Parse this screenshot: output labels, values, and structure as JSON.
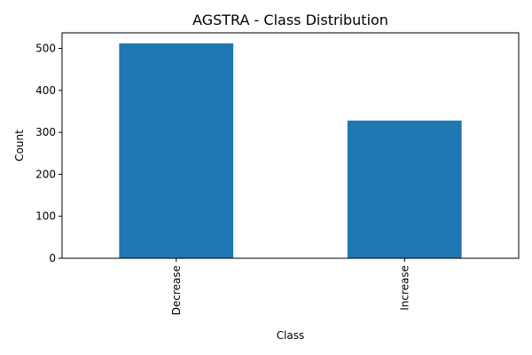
{
  "chart_data": {
    "type": "bar",
    "title": "AGSTRA - Class Distribution",
    "xlabel": "Class",
    "ylabel": "Count",
    "categories": [
      "Decrease",
      "Increase"
    ],
    "values": [
      512,
      328
    ],
    "ylim": [
      0,
      537
    ],
    "yticks": [
      0,
      100,
      200,
      300,
      400,
      500
    ],
    "bar_color": "#1f77b4",
    "grid": false,
    "x_tick_rotation": "vertical"
  }
}
